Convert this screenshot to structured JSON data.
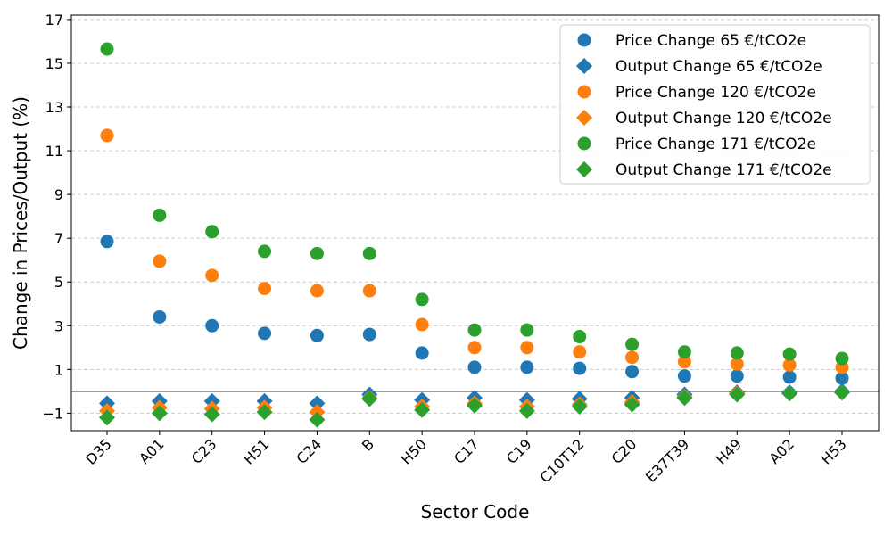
{
  "chart_data": {
    "type": "scatter",
    "xlabel": "Sector Code",
    "ylabel": "Change in Prices/Output (%)",
    "categories": [
      "D35",
      "A01",
      "C23",
      "H51",
      "C24",
      "B",
      "H50",
      "C17",
      "C19",
      "C10T12",
      "C20",
      "E37T39",
      "H49",
      "A02",
      "H53"
    ],
    "ylim": [
      -1.8,
      17.2
    ],
    "yticks": [
      -1,
      1,
      3,
      5,
      7,
      9,
      11,
      13,
      15,
      17
    ],
    "ytick_labels": [
      "−1",
      "1",
      "3",
      "5",
      "7",
      "9",
      "11",
      "13",
      "15",
      "17"
    ],
    "grid": "y-dashed",
    "zero_line": true,
    "legend_position": "top-right",
    "series": [
      {
        "name": "Price Change 65 €/tCO2e",
        "marker": "circle",
        "color": "#1f77b4",
        "values": [
          6.85,
          3.4,
          3.0,
          2.65,
          2.55,
          2.6,
          1.75,
          1.1,
          1.1,
          1.05,
          0.9,
          0.7,
          0.7,
          0.65,
          0.6
        ]
      },
      {
        "name": "Output Change 65 €/tCO2e",
        "marker": "diamond",
        "color": "#1f77b4",
        "values": [
          -0.55,
          -0.45,
          -0.45,
          -0.45,
          -0.55,
          -0.15,
          -0.4,
          -0.3,
          -0.4,
          -0.35,
          -0.3,
          -0.15,
          -0.05,
          -0.05,
          0.0
        ]
      },
      {
        "name": "Price Change 120 €/tCO2e",
        "marker": "circle",
        "color": "#ff7f0e",
        "values": [
          11.7,
          5.95,
          5.3,
          4.7,
          4.6,
          4.6,
          3.05,
          2.0,
          2.0,
          1.8,
          1.55,
          1.35,
          1.25,
          1.2,
          1.1
        ]
      },
      {
        "name": "Output Change 120 €/tCO2e",
        "marker": "diamond",
        "color": "#ff7f0e",
        "values": [
          -0.9,
          -0.75,
          -0.8,
          -0.75,
          -0.95,
          -0.3,
          -0.7,
          -0.55,
          -0.7,
          -0.6,
          -0.5,
          -0.25,
          -0.1,
          -0.1,
          -0.05
        ]
      },
      {
        "name": "Price Change 171 €/tCO2e",
        "marker": "circle",
        "color": "#2ca02c",
        "values": [
          15.65,
          8.05,
          7.3,
          6.4,
          6.3,
          6.3,
          4.2,
          2.8,
          2.8,
          2.5,
          2.15,
          1.8,
          1.75,
          1.7,
          1.5
        ]
      },
      {
        "name": "Output Change 171 €/tCO2e",
        "marker": "diamond",
        "color": "#2ca02c",
        "values": [
          -1.2,
          -1.0,
          -1.05,
          -0.95,
          -1.3,
          -0.35,
          -0.85,
          -0.65,
          -0.9,
          -0.7,
          -0.6,
          -0.3,
          -0.15,
          -0.1,
          -0.05
        ]
      }
    ]
  }
}
